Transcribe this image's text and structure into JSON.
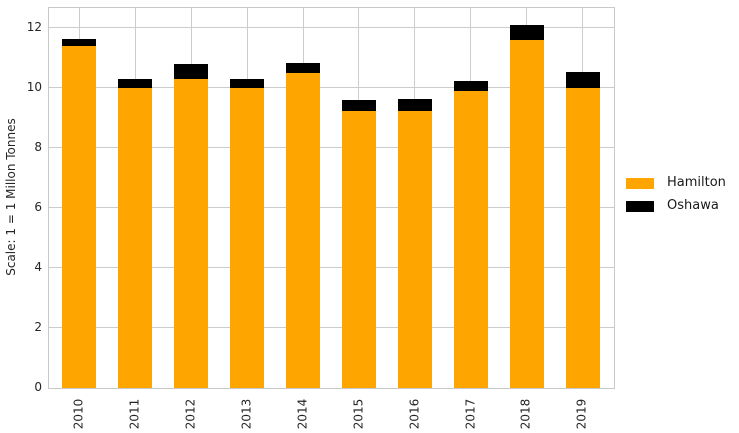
{
  "chart_data": {
    "type": "bar",
    "stacked": true,
    "title": "",
    "xlabel": "",
    "ylabel": "Scale: 1 = 1 Millon Tonnes",
    "categories": [
      "2010",
      "2011",
      "2012",
      "2013",
      "2014",
      "2015",
      "2016",
      "2017",
      "2018",
      "2019"
    ],
    "series": [
      {
        "name": "Hamilton",
        "color": "#FFA500",
        "values": [
          11.4,
          10.0,
          10.3,
          10.0,
          10.5,
          9.25,
          9.25,
          9.9,
          11.6,
          10.0
        ]
      },
      {
        "name": "Oshawa",
        "color": "#000000",
        "values": [
          0.25,
          0.3,
          0.5,
          0.3,
          0.35,
          0.35,
          0.4,
          0.35,
          0.5,
          0.55
        ]
      }
    ],
    "totals": [
      11.65,
      10.3,
      10.8,
      10.3,
      10.85,
      9.6,
      9.65,
      10.25,
      12.1,
      10.55
    ],
    "ylim": [
      0,
      12.67
    ],
    "yticks": [
      0,
      2,
      4,
      6,
      8,
      10,
      12
    ],
    "grid": true,
    "grid_color": "#cccccc",
    "legend_position": "right",
    "x_tick_rotation_deg": 90
  },
  "legend": {
    "items": [
      {
        "label": "Hamilton",
        "color": "#FFA500"
      },
      {
        "label": "Oshawa",
        "color": "#000000"
      }
    ]
  }
}
